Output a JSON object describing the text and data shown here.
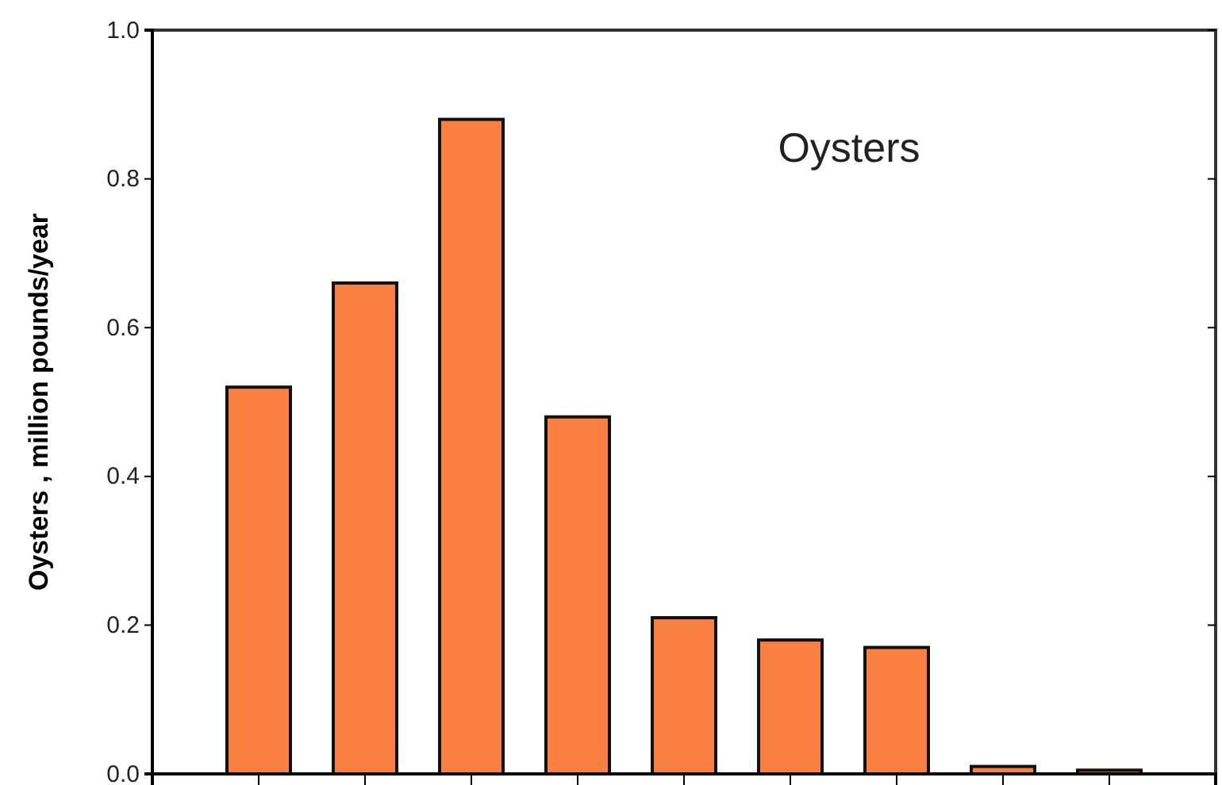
{
  "chart_data": {
    "type": "bar",
    "ylabel": "Oysters , million pounds/year",
    "annotations": [
      "Oysters"
    ],
    "categories": [
      null,
      null,
      null,
      null,
      null,
      null,
      null,
      null,
      null
    ],
    "values": [
      0.52,
      0.66,
      0.88,
      0.48,
      0.21,
      0.18,
      0.17,
      0.01,
      0.005
    ],
    "color": "#f98040",
    "ylim": [
      0,
      1
    ],
    "yticks": [
      {
        "value": 0,
        "label": "0.0"
      },
      0.2,
      0.4,
      0.6,
      0.8,
      {
        "value": 1,
        "label": "1.0"
      }
    ],
    "grid": false,
    "tick_labels": "y"
  }
}
